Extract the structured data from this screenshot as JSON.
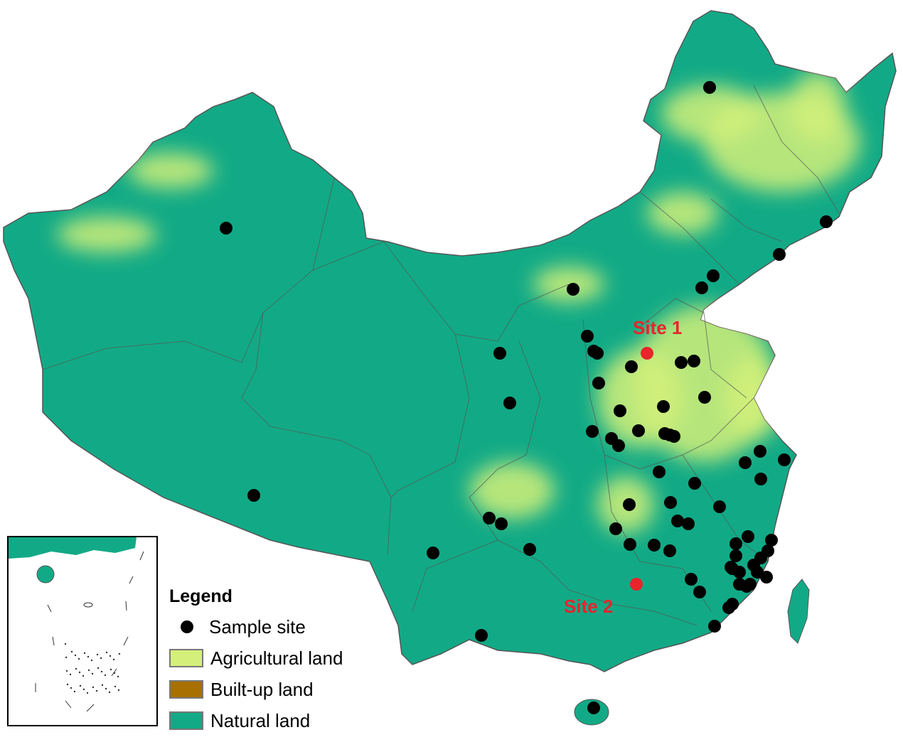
{
  "legend": {
    "title": "Legend",
    "items": [
      {
        "label": "Sample site",
        "symbol": "black-dot",
        "color": "#000000"
      },
      {
        "label": "Agricultural land",
        "color": "#d4f07a"
      },
      {
        "label": "Built-up land",
        "color": "#a87000"
      },
      {
        "label": "Natural land",
        "color": "#12aa86"
      }
    ]
  },
  "sites": [
    {
      "label": "Site 1",
      "color": "#e8242c"
    },
    {
      "label": "Site 2",
      "color": "#e8242c"
    }
  ],
  "colors": {
    "boundary": "#555555",
    "sample_site": "#000000",
    "highlight_site": "#e8242c"
  }
}
